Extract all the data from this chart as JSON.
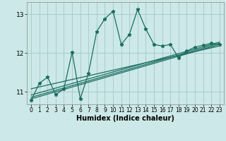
{
  "title": "",
  "xlabel": "Humidex (Indice chaleur)",
  "background_color": "#cce8e8",
  "grid_color": "#aacccc",
  "line_color": "#1a6e60",
  "xlim": [
    -0.5,
    23.5
  ],
  "ylim": [
    10.68,
    13.3
  ],
  "yticks": [
    11,
    12,
    13
  ],
  "xticks": [
    0,
    1,
    2,
    3,
    4,
    5,
    6,
    7,
    8,
    9,
    10,
    11,
    12,
    13,
    14,
    15,
    16,
    17,
    18,
    19,
    20,
    21,
    22,
    23
  ],
  "line_x": [
    0,
    1,
    2,
    3,
    4,
    5,
    6,
    7,
    8,
    9,
    10,
    11,
    12,
    13,
    14,
    15,
    16,
    17,
    18,
    19,
    20,
    21,
    22,
    23
  ],
  "line_y": [
    10.78,
    11.22,
    11.38,
    10.93,
    11.08,
    12.02,
    10.82,
    11.48,
    12.55,
    12.88,
    13.08,
    12.22,
    12.48,
    13.12,
    12.62,
    12.22,
    12.18,
    12.22,
    11.88,
    12.05,
    12.15,
    12.2,
    12.25,
    12.22
  ],
  "reg_lines": [
    {
      "x0": 0,
      "y0": 10.82,
      "x1": 23,
      "y1": 12.22
    },
    {
      "x0": 0,
      "y0": 10.86,
      "x1": 23,
      "y1": 12.25
    },
    {
      "x0": 0,
      "y0": 10.92,
      "x1": 23,
      "y1": 12.28
    },
    {
      "x0": 0,
      "y0": 11.08,
      "x1": 23,
      "y1": 12.18
    }
  ]
}
